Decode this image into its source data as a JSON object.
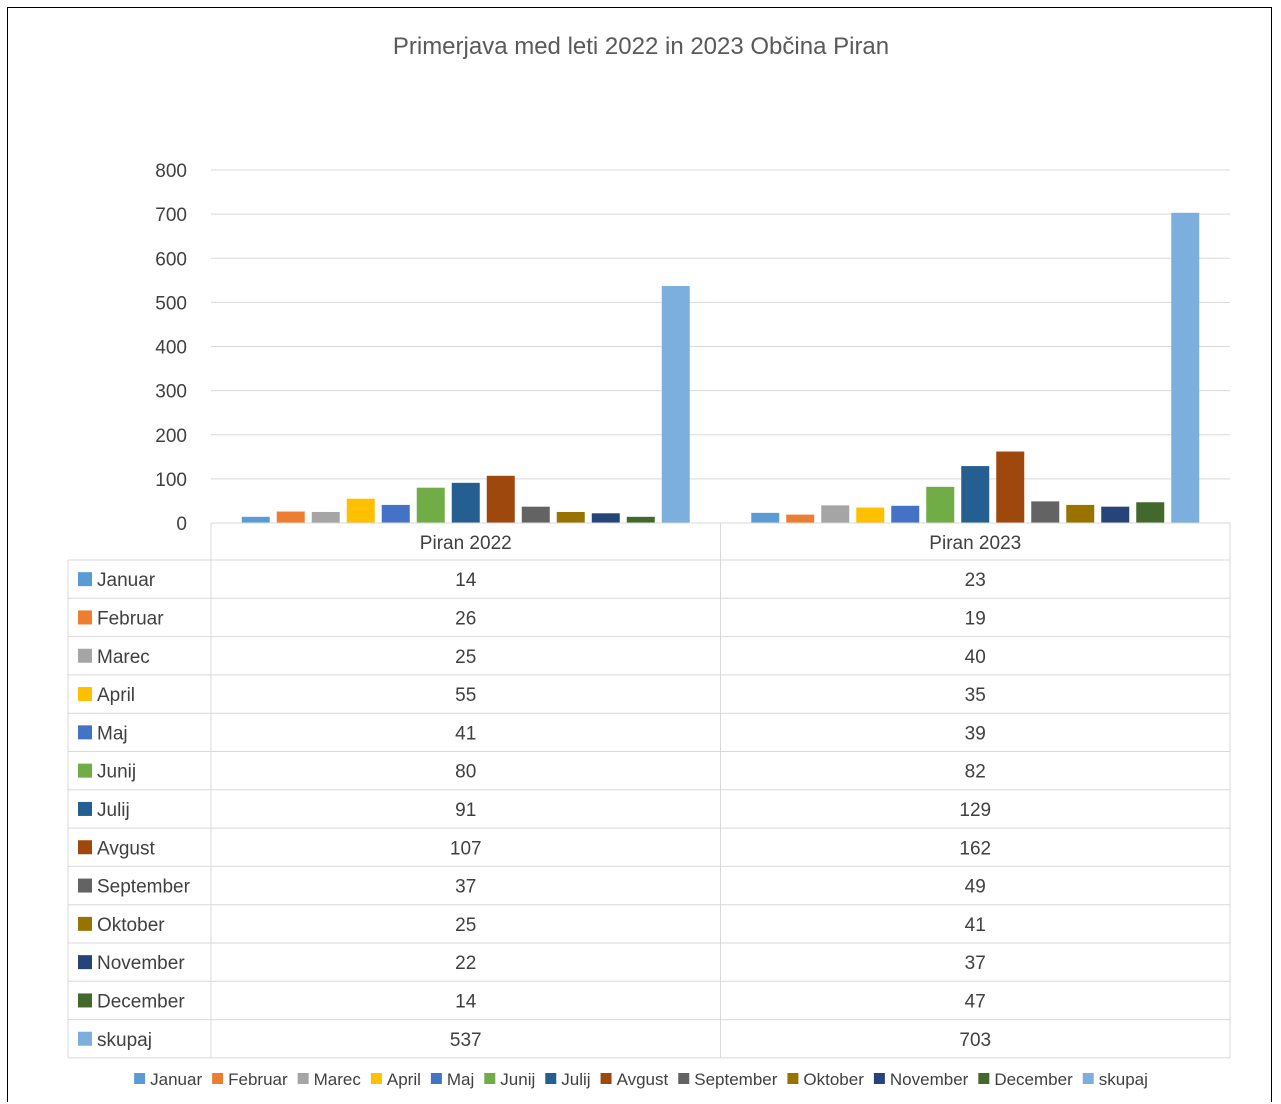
{
  "chart_data": {
    "type": "bar",
    "title": "Primerjava med leti 2022 in 2023 Občina Piran",
    "categories": [
      "Piran 2022",
      "Piran 2023"
    ],
    "ylim": [
      0,
      800
    ],
    "yticks": [
      0,
      100,
      200,
      300,
      400,
      500,
      600,
      700,
      800
    ],
    "grid": true,
    "legend_position": "bottom",
    "has_data_table": true,
    "series": [
      {
        "name": "Januar",
        "color": "#5B9BD5",
        "values": [
          14,
          23
        ]
      },
      {
        "name": "Februar",
        "color": "#ED7D31",
        "values": [
          26,
          19
        ]
      },
      {
        "name": "Marec",
        "color": "#A5A5A5",
        "values": [
          25,
          40
        ]
      },
      {
        "name": "April",
        "color": "#FFC000",
        "values": [
          55,
          35
        ]
      },
      {
        "name": "Maj",
        "color": "#4472C4",
        "values": [
          41,
          39
        ]
      },
      {
        "name": "Junij",
        "color": "#70AD47",
        "values": [
          80,
          82
        ]
      },
      {
        "name": "Julij",
        "color": "#255E91",
        "values": [
          91,
          129
        ]
      },
      {
        "name": "Avgust",
        "color": "#9E480E",
        "values": [
          107,
          162
        ]
      },
      {
        "name": "September",
        "color": "#636363",
        "values": [
          37,
          49
        ]
      },
      {
        "name": "Oktober",
        "color": "#997300",
        "values": [
          25,
          41
        ]
      },
      {
        "name": "November",
        "color": "#264478",
        "values": [
          22,
          37
        ]
      },
      {
        "name": "December",
        "color": "#43682B",
        "values": [
          14,
          47
        ]
      },
      {
        "name": "skupaj",
        "color": "#7CAFDD",
        "values": [
          537,
          703
        ]
      }
    ]
  }
}
